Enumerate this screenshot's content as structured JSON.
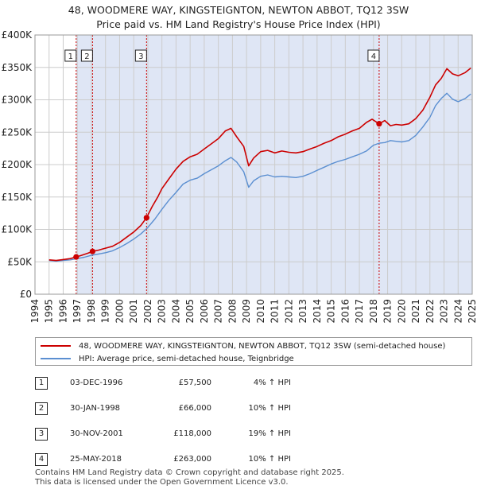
{
  "title_line1": "48, WOODMERE WAY, KINGSTEIGNTON, NEWTON ABBOT, TQ12 3SW",
  "title_line2": "Price paid vs. HM Land Registry's House Price Index (HPI)",
  "colors": {
    "price": "#cc0000",
    "hpi": "#5b8fd1",
    "shade": "#dfe6f5",
    "grid": "#cccccc",
    "vline": "#cc0000"
  },
  "chart_data": {
    "type": "line",
    "ylim": [
      0,
      400000
    ],
    "xlim": [
      1994,
      2025
    ],
    "y_ticks": [
      {
        "value": 0,
        "label": "£0"
      },
      {
        "value": 50000,
        "label": "£50K"
      },
      {
        "value": 100000,
        "label": "£100K"
      },
      {
        "value": 150000,
        "label": "£150K"
      },
      {
        "value": 200000,
        "label": "£200K"
      },
      {
        "value": 250000,
        "label": "£250K"
      },
      {
        "value": 300000,
        "label": "£300K"
      },
      {
        "value": 350000,
        "label": "£350K"
      },
      {
        "value": 400000,
        "label": "£400K"
      }
    ],
    "x_ticks": [
      "1994",
      "1995",
      "1996",
      "1997",
      "1998",
      "1999",
      "2000",
      "2001",
      "2002",
      "2003",
      "2004",
      "2005",
      "2006",
      "2007",
      "2008",
      "2009",
      "2010",
      "2011",
      "2012",
      "2013",
      "2014",
      "2015",
      "2016",
      "2017",
      "2018",
      "2019",
      "2020",
      "2021",
      "2022",
      "2023",
      "2024",
      "2025"
    ],
    "series": [
      {
        "name": "48, WOODMERE WAY, KINGSTEIGNTON, NEWTON ABBOT, TQ12 3SW (semi-detached house)",
        "key": "price",
        "x": [
          1995.0,
          1995.5,
          1996.0,
          1996.5,
          1996.92,
          1997.3,
          1997.7,
          1998.08,
          1998.5,
          1999.0,
          1999.5,
          2000.0,
          2000.5,
          2001.0,
          2001.5,
          2001.91,
          2002.3,
          2002.7,
          2003.0,
          2003.5,
          2004.0,
          2004.5,
          2005.0,
          2005.5,
          2006.0,
          2006.5,
          2007.0,
          2007.5,
          2007.9,
          2008.3,
          2008.8,
          2009.15,
          2009.5,
          2010.0,
          2010.5,
          2011.0,
          2011.5,
          2012.0,
          2012.5,
          2013.0,
          2013.5,
          2014.0,
          2014.5,
          2015.0,
          2015.5,
          2016.0,
          2016.5,
          2017.0,
          2017.5,
          2017.9,
          2018.4,
          2018.8,
          2019.2,
          2019.6,
          2020.0,
          2020.5,
          2021.0,
          2021.5,
          2022.0,
          2022.4,
          2022.8,
          2023.2,
          2023.6,
          2024.0,
          2024.5,
          2024.9
        ],
        "values": [
          53000,
          52000,
          53500,
          55000,
          57500,
          60000,
          63000,
          66000,
          68000,
          71000,
          74000,
          80000,
          88000,
          96000,
          106000,
          118000,
          135000,
          150000,
          163000,
          178000,
          193000,
          205000,
          212000,
          216000,
          224000,
          232000,
          240000,
          252000,
          256000,
          243000,
          228000,
          198000,
          210000,
          220000,
          222000,
          218000,
          221000,
          219000,
          218000,
          220000,
          224000,
          228000,
          233000,
          237000,
          243000,
          247000,
          252000,
          256000,
          265000,
          270000,
          263000,
          268000,
          260000,
          262000,
          261000,
          263000,
          271000,
          284000,
          304000,
          323000,
          333000,
          348000,
          340000,
          337000,
          342000,
          349000
        ]
      },
      {
        "name": "HPI: Average price, semi-detached house, Teignbridge",
        "key": "hpi",
        "x": [
          1995.0,
          1995.5,
          1996.0,
          1996.5,
          1997.0,
          1997.5,
          1998.0,
          1998.5,
          1999.0,
          1999.5,
          2000.0,
          2000.5,
          2001.0,
          2001.5,
          2002.0,
          2002.5,
          2003.0,
          2003.5,
          2004.0,
          2004.5,
          2005.0,
          2005.5,
          2006.0,
          2006.5,
          2007.0,
          2007.5,
          2007.9,
          2008.3,
          2008.8,
          2009.15,
          2009.5,
          2010.0,
          2010.5,
          2011.0,
          2011.5,
          2012.0,
          2012.5,
          2013.0,
          2013.5,
          2014.0,
          2014.5,
          2015.0,
          2015.5,
          2016.0,
          2016.5,
          2017.0,
          2017.5,
          2018.0,
          2018.4,
          2018.8,
          2019.2,
          2019.6,
          2020.0,
          2020.5,
          2021.0,
          2021.5,
          2022.0,
          2022.4,
          2022.8,
          2023.2,
          2023.6,
          2024.0,
          2024.5,
          2024.9
        ],
        "values": [
          52000,
          51000,
          52000,
          53000,
          55000,
          57000,
          60000,
          62000,
          64000,
          67000,
          72000,
          78000,
          85000,
          93000,
          103000,
          116000,
          131000,
          145000,
          157000,
          170000,
          176000,
          179000,
          186000,
          192000,
          198000,
          206000,
          211000,
          204000,
          189000,
          165000,
          175000,
          182000,
          184000,
          181000,
          182000,
          181000,
          180000,
          182000,
          186000,
          191000,
          196000,
          201000,
          205000,
          208000,
          212000,
          216000,
          221000,
          230000,
          233000,
          234000,
          237000,
          236000,
          235000,
          237000,
          245000,
          258000,
          273000,
          291000,
          302000,
          310000,
          301000,
          297000,
          302000,
          309000
        ]
      }
    ],
    "markers": [
      {
        "n": "1",
        "x": 1996.92,
        "value": 57500
      },
      {
        "n": "2",
        "x": 1998.08,
        "value": 66000
      },
      {
        "n": "3",
        "x": 2001.91,
        "value": 118000
      },
      {
        "n": "4",
        "x": 2018.4,
        "value": 263000
      }
    ]
  },
  "legend": {
    "price": "48, WOODMERE WAY, KINGSTEIGNTON, NEWTON ABBOT, TQ12 3SW (semi-detached house)",
    "hpi": "HPI: Average price, semi-detached house, Teignbridge"
  },
  "transactions": [
    {
      "n": "1",
      "date": "03-DEC-1996",
      "price": "£57,500",
      "hpi": "4% ↑ HPI"
    },
    {
      "n": "2",
      "date": "30-JAN-1998",
      "price": "£66,000",
      "hpi": "10% ↑ HPI"
    },
    {
      "n": "3",
      "date": "30-NOV-2001",
      "price": "£118,000",
      "hpi": "19% ↑ HPI"
    },
    {
      "n": "4",
      "date": "25-MAY-2018",
      "price": "£263,000",
      "hpi": "10% ↑ HPI"
    }
  ],
  "footer_line1": "Contains HM Land Registry data © Crown copyright and database right 2025.",
  "footer_line2": "This data is licensed under the Open Government Licence v3.0."
}
